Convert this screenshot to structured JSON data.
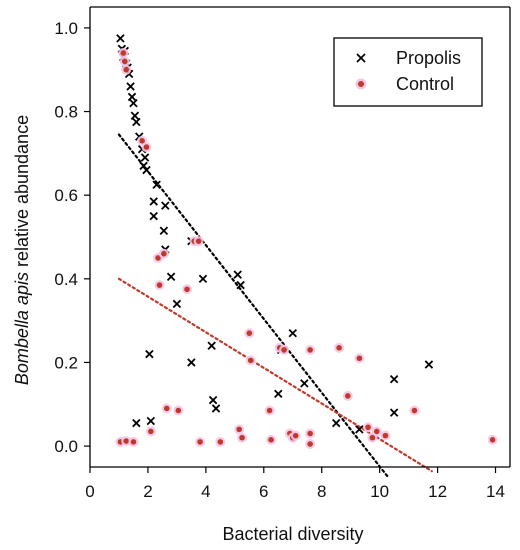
{
  "chart_data": {
    "type": "scatter",
    "xlabel": "Bacterial diversity",
    "ylabel": {
      "italic": "Bombella apis",
      "rest": " relative abundance"
    },
    "xlim": [
      0,
      14.5
    ],
    "ylim": [
      -0.05,
      1.05
    ],
    "xticks": [
      0,
      2,
      4,
      6,
      8,
      10,
      12,
      14
    ],
    "yticks": [
      0.0,
      0.2,
      0.4,
      0.6,
      0.8,
      1.0
    ],
    "tick_labels_x": [
      "0",
      "2",
      "4",
      "6",
      "8",
      "10",
      "12",
      "14"
    ],
    "tick_labels_y": [
      "0.0",
      "0.2",
      "0.4",
      "0.6",
      "0.8",
      "1.0"
    ],
    "legend_position": "top-right",
    "grid": false,
    "series": [
      {
        "name": "Propolis",
        "marker": "x",
        "color": "#000000",
        "points": [
          [
            1.05,
            0.975
          ],
          [
            1.1,
            0.95
          ],
          [
            1.15,
            0.93
          ],
          [
            1.2,
            0.945
          ],
          [
            1.25,
            0.915
          ],
          [
            1.3,
            0.905
          ],
          [
            1.35,
            0.89
          ],
          [
            1.4,
            0.86
          ],
          [
            1.45,
            0.835
          ],
          [
            1.5,
            0.82
          ],
          [
            1.55,
            0.79
          ],
          [
            1.6,
            0.775
          ],
          [
            1.7,
            0.74
          ],
          [
            1.8,
            0.71
          ],
          [
            1.9,
            0.69
          ],
          [
            1.95,
            0.66
          ],
          [
            1.85,
            0.67
          ],
          [
            2.3,
            0.625
          ],
          [
            2.2,
            0.585
          ],
          [
            2.6,
            0.575
          ],
          [
            2.2,
            0.55
          ],
          [
            2.55,
            0.515
          ],
          [
            2.6,
            0.47
          ],
          [
            2.8,
            0.405
          ],
          [
            3.5,
            0.49
          ],
          [
            3.9,
            0.4
          ],
          [
            3.0,
            0.34
          ],
          [
            5.1,
            0.41
          ],
          [
            5.2,
            0.385
          ],
          [
            4.2,
            0.24
          ],
          [
            2.05,
            0.22
          ],
          [
            3.5,
            0.2
          ],
          [
            7.0,
            0.27
          ],
          [
            6.6,
            0.23
          ],
          [
            7.4,
            0.15
          ],
          [
            6.5,
            0.125
          ],
          [
            4.25,
            0.11
          ],
          [
            4.35,
            0.09
          ],
          [
            1.6,
            0.055
          ],
          [
            2.1,
            0.06
          ],
          [
            8.5,
            0.055
          ],
          [
            9.3,
            0.04
          ],
          [
            10.5,
            0.16
          ],
          [
            11.7,
            0.195
          ],
          [
            10.5,
            0.08
          ]
        ]
      },
      {
        "name": "Control",
        "marker": "dot",
        "color": "#c0392b",
        "points": [
          [
            1.15,
            0.94
          ],
          [
            1.2,
            0.92
          ],
          [
            1.25,
            0.9
          ],
          [
            1.8,
            0.73
          ],
          [
            1.95,
            0.715
          ],
          [
            2.35,
            0.45
          ],
          [
            2.55,
            0.46
          ],
          [
            3.6,
            0.49
          ],
          [
            3.75,
            0.49
          ],
          [
            3.35,
            0.375
          ],
          [
            2.4,
            0.385
          ],
          [
            5.5,
            0.27
          ],
          [
            6.55,
            0.235
          ],
          [
            6.7,
            0.23
          ],
          [
            7.6,
            0.23
          ],
          [
            8.6,
            0.235
          ],
          [
            9.3,
            0.21
          ],
          [
            9.9,
            0.035
          ],
          [
            10.2,
            0.025
          ],
          [
            11.2,
            0.085
          ],
          [
            5.55,
            0.205
          ],
          [
            6.2,
            0.085
          ],
          [
            2.1,
            0.035
          ],
          [
            1.05,
            0.01
          ],
          [
            1.25,
            0.012
          ],
          [
            1.5,
            0.01
          ],
          [
            2.65,
            0.09
          ],
          [
            3.05,
            0.085
          ],
          [
            3.8,
            0.01
          ],
          [
            4.5,
            0.01
          ],
          [
            5.15,
            0.04
          ],
          [
            5.25,
            0.02
          ],
          [
            6.25,
            0.015
          ],
          [
            6.9,
            0.03
          ],
          [
            7.0,
            0.02
          ],
          [
            7.1,
            0.025
          ],
          [
            7.6,
            0.03
          ],
          [
            7.6,
            0.005
          ],
          [
            8.9,
            0.12
          ],
          [
            9.6,
            0.045
          ],
          [
            9.75,
            0.02
          ],
          [
            13.9,
            0.015
          ]
        ]
      }
    ],
    "trendlines": [
      {
        "series": "Propolis",
        "color": "#000000",
        "x": [
          1.0,
          10.3
        ],
        "y": [
          0.745,
          -0.075
        ]
      },
      {
        "series": "Control",
        "color": "#c0392b",
        "x": [
          1.0,
          11.8
        ],
        "y": [
          0.4,
          -0.06
        ]
      }
    ]
  }
}
